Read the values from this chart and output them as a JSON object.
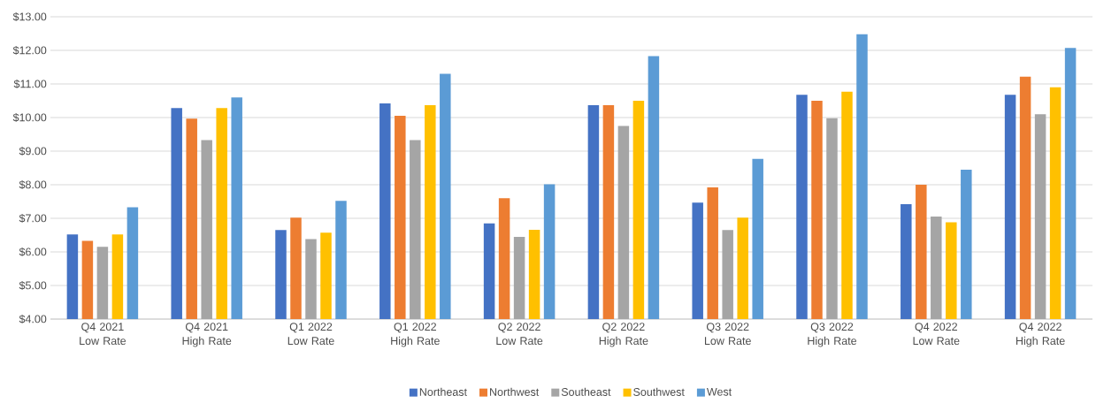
{
  "chart_data": {
    "type": "bar",
    "categories": [
      "Q4 2021 Low Rate",
      "Q4 2021 High Rate",
      "Q1 2022 Low Rate",
      "Q1 2022 High Rate",
      "Q2 2022 Low Rate",
      "Q2 2022 High Rate",
      "Q3 2022 Low Rate",
      "Q3 2022 High Rate",
      "Q4 2022 Low Rate",
      "Q4 2022 High Rate"
    ],
    "series": [
      {
        "name": "Northeast",
        "color": "#4472c4",
        "values": [
          6.52,
          10.28,
          6.65,
          10.42,
          6.85,
          10.37,
          7.47,
          10.68,
          7.42,
          10.68
        ]
      },
      {
        "name": "Northwest",
        "color": "#ed7d31",
        "values": [
          6.33,
          9.97,
          7.02,
          10.05,
          7.6,
          10.37,
          7.92,
          10.5,
          8.0,
          11.22
        ]
      },
      {
        "name": "Southeast",
        "color": "#a5a5a5",
        "values": [
          6.15,
          9.33,
          6.38,
          9.33,
          6.45,
          9.75,
          6.65,
          9.98,
          7.05,
          10.1
        ]
      },
      {
        "name": "Southwest",
        "color": "#ffc000",
        "values": [
          6.52,
          10.28,
          6.57,
          10.37,
          6.66,
          10.5,
          7.02,
          10.77,
          6.88,
          10.9
        ]
      },
      {
        "name": "West",
        "color": "#5b9bd5",
        "values": [
          7.33,
          10.6,
          7.52,
          11.3,
          8.01,
          11.83,
          8.77,
          12.48,
          8.45,
          12.07
        ]
      }
    ],
    "ylim": [
      4,
      13
    ],
    "yticks": [
      {
        "value": 4,
        "label": "$4.00"
      },
      {
        "value": 5,
        "label": "$5.00"
      },
      {
        "value": 6,
        "label": "$6.00"
      },
      {
        "value": 7,
        "label": "$7.00"
      },
      {
        "value": 8,
        "label": "$8.00"
      },
      {
        "value": 9,
        "label": "$9.00"
      },
      {
        "value": 10,
        "label": "$10.00"
      },
      {
        "value": 11,
        "label": "$11.00"
      },
      {
        "value": 12,
        "label": "$12.00"
      },
      {
        "value": 13,
        "label": "$13.00"
      }
    ],
    "grid": "y",
    "legend": "bottom"
  }
}
